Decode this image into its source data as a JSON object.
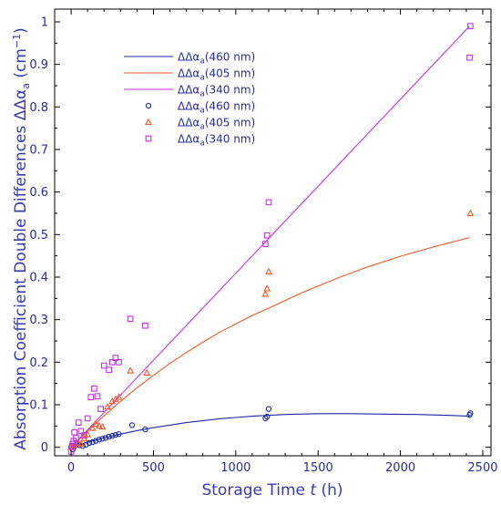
{
  "chart_data": {
    "type": "scatter",
    "xlabel": {
      "main": "Storage Time ",
      "var": "t",
      "unit": " (h)"
    },
    "ylabel": {
      "main": "Absorption Coefficient Double Differences ",
      "symbol": "ΔΔα",
      "sub": "a",
      "unit": " (cm",
      "sup": "−1",
      "close": ")"
    },
    "xlim": [
      -100,
      2550
    ],
    "ylim": [
      -0.02,
      1.03
    ],
    "xticks": [
      0,
      500,
      1000,
      1500,
      2000,
      2500
    ],
    "xtick_labels": [
      "0",
      "500",
      "1000",
      "1500",
      "2000",
      "2500"
    ],
    "yticks": [
      0,
      0.1,
      0.2,
      0.3,
      0.4,
      0.5,
      0.6,
      0.7,
      0.8,
      0.9,
      1
    ],
    "ytick_labels": [
      "0",
      "0.1",
      "0.2",
      "0.3",
      "0.4",
      "0.5",
      "0.6",
      "0.7",
      "0.8",
      "0.9",
      "1"
    ],
    "legend_position": "top-left",
    "legend": [
      {
        "symbol": "ΔΔα",
        "sub": "a",
        "suffix": "(460 nm)",
        "kind": "line",
        "color": "#1c2aa0"
      },
      {
        "symbol": "ΔΔα",
        "sub": "a",
        "suffix": "(405 nm)",
        "kind": "line",
        "color": "#f05a28"
      },
      {
        "symbol": "ΔΔα",
        "sub": "a",
        "suffix": "(340 nm)",
        "kind": "line",
        "color": "#c035e0"
      },
      {
        "symbol": "ΔΔα",
        "sub": "a",
        "suffix": "(460 nm)",
        "kind": "circle",
        "color": "#1c2aa0"
      },
      {
        "symbol": "ΔΔα",
        "sub": "a",
        "suffix": "(405 nm)",
        "kind": "triangle",
        "color": "#f05a28"
      },
      {
        "symbol": "ΔΔα",
        "sub": "a",
        "suffix": "(340 nm)",
        "kind": "square",
        "color": "#c035e0"
      }
    ],
    "series": [
      {
        "kind": "line",
        "color": "#1c2aa0",
        "x": [
          0,
          100,
          200,
          300,
          400,
          500,
          700,
          900,
          1100,
          1300,
          1500,
          1700,
          1900,
          2100,
          2300,
          2420
        ],
        "y": [
          0,
          0.012,
          0.022,
          0.031,
          0.039,
          0.046,
          0.058,
          0.067,
          0.073,
          0.077,
          0.079,
          0.079,
          0.078,
          0.077,
          0.075,
          0.073
        ]
      },
      {
        "kind": "line",
        "color": "#f05a28",
        "x": [
          0,
          100,
          200,
          300,
          400,
          500,
          600,
          700,
          800,
          900,
          1000,
          1100,
          1200,
          1400,
          1600,
          1800,
          2000,
          2200,
          2420
        ],
        "y": [
          0,
          0.038,
          0.074,
          0.108,
          0.14,
          0.169,
          0.197,
          0.223,
          0.247,
          0.27,
          0.29,
          0.31,
          0.327,
          0.363,
          0.395,
          0.424,
          0.449,
          0.471,
          0.493
        ]
      },
      {
        "kind": "line",
        "color": "#c035e0",
        "x": [
          0,
          2420
        ],
        "y": [
          0,
          0.99
        ]
      },
      {
        "kind": "circle",
        "color": "#1c2aa0",
        "x": [
          0,
          10,
          20,
          30,
          50,
          70,
          90,
          110,
          130,
          150,
          170,
          190,
          210,
          230,
          250,
          270,
          290,
          370,
          450,
          1180,
          1190,
          1200,
          2420,
          2425
        ],
        "y": [
          0,
          -0.005,
          0.002,
          0.008,
          0.005,
          0.003,
          0.006,
          0.01,
          0.012,
          0.015,
          0.018,
          0.02,
          0.022,
          0.025,
          0.027,
          0.029,
          0.031,
          0.052,
          0.042,
          0.068,
          0.072,
          0.09,
          0.076,
          0.08
        ]
      },
      {
        "kind": "triangle",
        "color": "#f05a28",
        "x": [
          0,
          20,
          40,
          60,
          80,
          100,
          130,
          150,
          170,
          190,
          220,
          250,
          270,
          290,
          360,
          460,
          1180,
          1190,
          1200,
          2425
        ],
        "y": [
          0,
          0.005,
          0.01,
          0.008,
          0.02,
          0.03,
          0.045,
          0.055,
          0.05,
          0.048,
          0.095,
          0.108,
          0.113,
          0.118,
          0.18,
          0.175,
          0.36,
          0.373,
          0.413,
          0.55
        ]
      },
      {
        "kind": "square",
        "color": "#c035e0",
        "x": [
          0,
          5,
          10,
          15,
          20,
          30,
          45,
          60,
          80,
          100,
          120,
          140,
          160,
          180,
          200,
          230,
          250,
          270,
          290,
          360,
          450,
          1180,
          1190,
          1200,
          2420,
          2425
        ],
        "y": [
          -0.01,
          0.002,
          0.008,
          0.015,
          0.035,
          0.022,
          0.058,
          0.038,
          0.028,
          0.068,
          0.118,
          0.138,
          0.12,
          0.09,
          0.192,
          0.182,
          0.2,
          0.21,
          0.2,
          0.302,
          0.286,
          0.478,
          0.498,
          0.576,
          0.916,
          0.99
        ]
      }
    ]
  }
}
